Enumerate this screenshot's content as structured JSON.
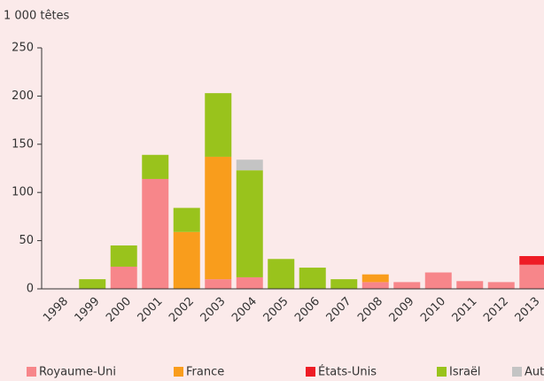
{
  "chart_data": {
    "type": "stacked_bar",
    "y_label": "1 000 têtes",
    "categories": [
      "1998",
      "1999",
      "2000",
      "2001",
      "2002",
      "2003",
      "2004",
      "2005",
      "2006",
      "2007",
      "2008",
      "2009",
      "2010",
      "2011",
      "2012",
      "2013"
    ],
    "series": [
      {
        "name": "Royaume-Uni",
        "color": "#f7868a",
        "values": [
          0,
          0,
          23,
          114,
          0,
          10,
          12,
          0,
          0,
          0,
          7,
          7,
          17,
          8,
          7,
          25
        ]
      },
      {
        "name": "France",
        "color": "#f99d1c",
        "values": [
          0,
          0,
          0,
          0,
          59,
          127,
          0,
          0,
          0,
          0,
          8,
          0,
          0,
          0,
          0,
          0
        ]
      },
      {
        "name": "États-Unis",
        "color": "#ee1c25",
        "values": [
          0,
          0,
          0,
          0,
          0,
          0,
          0,
          0,
          0,
          0,
          0,
          0,
          0,
          0,
          0,
          9
        ]
      },
      {
        "name": "Israël",
        "color": "#99c31c",
        "values": [
          0,
          10,
          22,
          25,
          25,
          66,
          111,
          31,
          22,
          10,
          0,
          0,
          0,
          0,
          0,
          0
        ]
      },
      {
        "name": "Autres",
        "color": "#c4c4c4",
        "values": [
          0,
          0,
          0,
          0,
          0,
          0,
          11,
          0,
          0,
          0,
          0,
          0,
          0,
          0,
          0,
          0
        ]
      }
    ],
    "ylim": [
      0,
      250
    ],
    "yticks": [
      0,
      50,
      100,
      150,
      200,
      250
    ]
  }
}
